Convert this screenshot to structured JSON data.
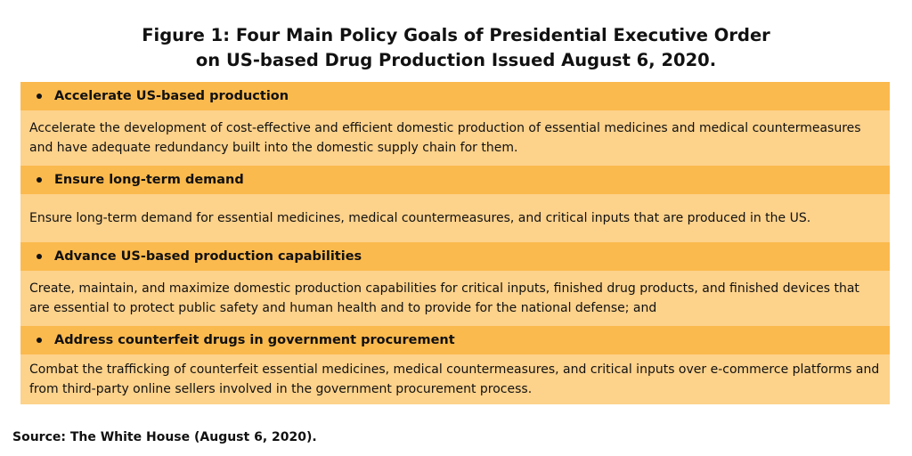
{
  "figure": {
    "title_line1": "Figure 1: Four Main Policy Goals of Presidential Executive Order",
    "title_line2": "on US-based Drug Production Issued August 6, 2020."
  },
  "goals": [
    {
      "heading": "Accelerate US-based production",
      "description": "Accelerate the development of cost-effective and efficient domestic production of essential medicines and medical countermeasures and have adequate redundancy built into the domestic supply chain for them."
    },
    {
      "heading": "Ensure long-term demand",
      "description": "Ensure long-term demand for essential medicines, medical countermeasures, and critical inputs that are produced in the US."
    },
    {
      "heading": "Advance US-based production capabilities",
      "description": "Create, maintain, and maximize domestic production capabilities for critical inputs, finished drug products, and finished devices that are essential to protect public safety and human health and to provide for the national defense; and"
    },
    {
      "heading": "Address counterfeit drugs in government procurement",
      "description": "Combat the trafficking of counterfeit essential medicines, medical countermeasures, and critical inputs over e-commerce platforms and from third-party online sellers involved in the government procurement process."
    }
  ],
  "source": "Source: The White House (August 6, 2020).",
  "colors": {
    "header_bg": "#fbba4e",
    "body_bg": "#fdd28b"
  }
}
